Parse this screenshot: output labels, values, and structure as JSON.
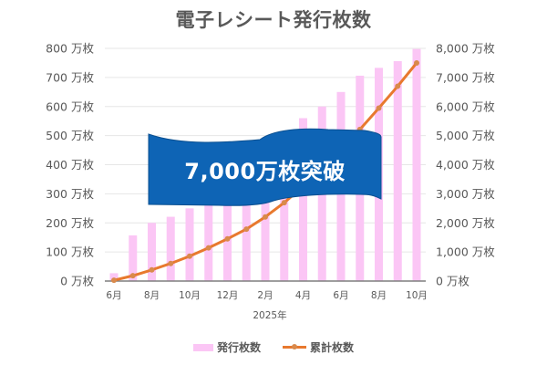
{
  "title": "電子レシート発行枚数",
  "banner": {
    "text": "7,000万枚突破",
    "color": "#0e64b5"
  },
  "legend": {
    "bar_label": "発行枚数",
    "line_label": "累計枚数"
  },
  "axes": {
    "left_ticks": [
      "800 万枚",
      "700 万枚",
      "600 万枚",
      "500 万枚",
      "400 万枚",
      "300 万枚",
      "200 万枚",
      "100 万枚",
      "0 万枚"
    ],
    "right_ticks": [
      "8,000 万枚",
      "7,000 万枚",
      "6,000 万枚",
      "5,000 万枚",
      "4,000 万枚",
      "3,000 万枚",
      "2,000 万枚",
      "1,000 万枚",
      "0 万枚"
    ],
    "x_ticks": [
      "6月",
      "8月",
      "10月",
      "12月",
      "2月",
      "4月",
      "6月",
      "8月",
      "10月"
    ],
    "x_sublabel": "2025年"
  },
  "colors": {
    "bar": "#fbc6f5",
    "line": "#e8792e",
    "marker": "#d98a4c",
    "grid": "#e6e6e6",
    "axis": "#7f7f7f"
  },
  "chart_data": {
    "type": "bar+line",
    "title": "電子レシート発行枚数",
    "categories": [
      "6月",
      "7月",
      "8月",
      "9月",
      "10月",
      "11月",
      "12月",
      "1月",
      "2月",
      "3月",
      "4月",
      "5月",
      "6月",
      "7月",
      "8月",
      "9月",
      "10月"
    ],
    "xlabel": "2025年",
    "series": [
      {
        "name": "発行枚数",
        "type": "bar",
        "axis": "left",
        "unit": "万枚",
        "values": [
          27,
          157,
          200,
          221,
          250,
          285,
          310,
          335,
          420,
          490,
          560,
          600,
          650,
          706,
          733,
          756,
          798
        ]
      },
      {
        "name": "累計枚数",
        "type": "line",
        "axis": "right",
        "unit": "万枚",
        "values": [
          27,
          184,
          384,
          605,
          855,
          1140,
          1450,
          1785,
          2205,
          2695,
          3255,
          3855,
          4505,
          5211,
          5944,
          6700,
          7498
        ]
      }
    ],
    "ylim_left": [
      0,
      800
    ],
    "ylim_right": [
      0,
      8000
    ],
    "grid": true,
    "legend_position": "bottom",
    "annotations": [
      "7,000万枚突破"
    ]
  }
}
